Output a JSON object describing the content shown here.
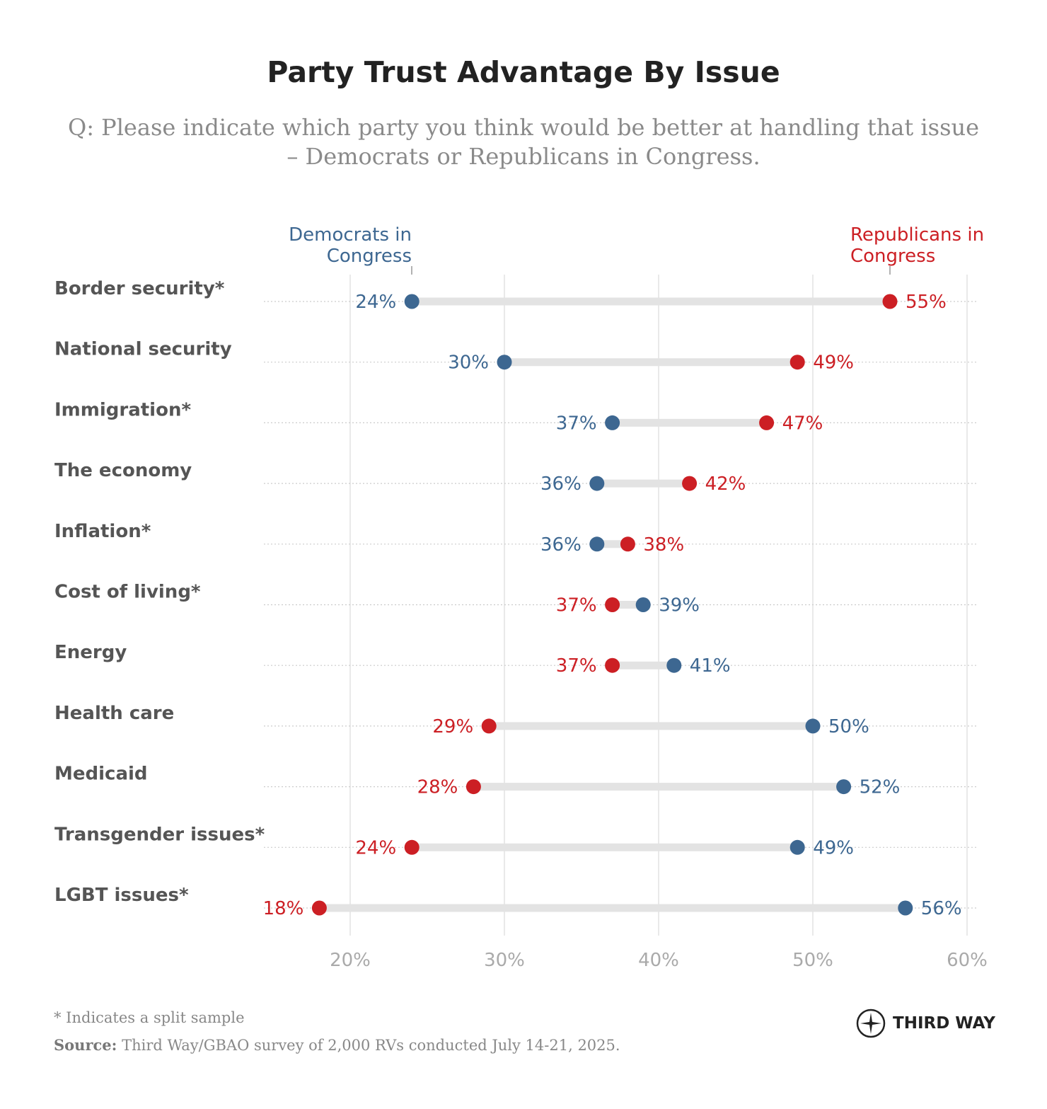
{
  "title": "Party Trust Advantage By Issue",
  "subtitle": "Q: Please indicate which party you think would be better at handling that issue – Democrats or Republicans in Congress.",
  "footnote": "* Indicates a split sample",
  "source_label": "Source:",
  "source": "Third Way/GBAO survey of 2,000 RVs conducted July 14-21, 2025.",
  "logo_text": "THIRD WAY",
  "colors": {
    "democrats": "#3d6791",
    "republicans": "#cc1f24"
  },
  "chart_data": {
    "type": "dumbbell",
    "xlim": [
      14.4,
      60.5
    ],
    "xticks": [
      20,
      30,
      40,
      50,
      60
    ],
    "xtick_labels": [
      "20%",
      "30%",
      "40%",
      "50%",
      "60%"
    ],
    "grid": true,
    "series_labels": {
      "democrats": [
        "Democrats in",
        "Congress"
      ],
      "republicans": [
        "Republicans in",
        "Congress"
      ]
    },
    "categories": [
      "Border security*",
      "National security",
      "Immigration*",
      "The economy",
      "Inflation*",
      "Cost of living*",
      "Energy",
      "Health care",
      "Medicaid",
      "Transgender issues*",
      "LGBT issues*"
    ],
    "series": [
      {
        "name": "Democrats in Congress",
        "values": [
          24,
          30,
          37,
          36,
          36,
          39,
          41,
          50,
          52,
          49,
          56
        ]
      },
      {
        "name": "Republicans in Congress",
        "values": [
          55,
          49,
          47,
          42,
          38,
          37,
          37,
          29,
          28,
          24,
          18
        ]
      }
    ]
  }
}
